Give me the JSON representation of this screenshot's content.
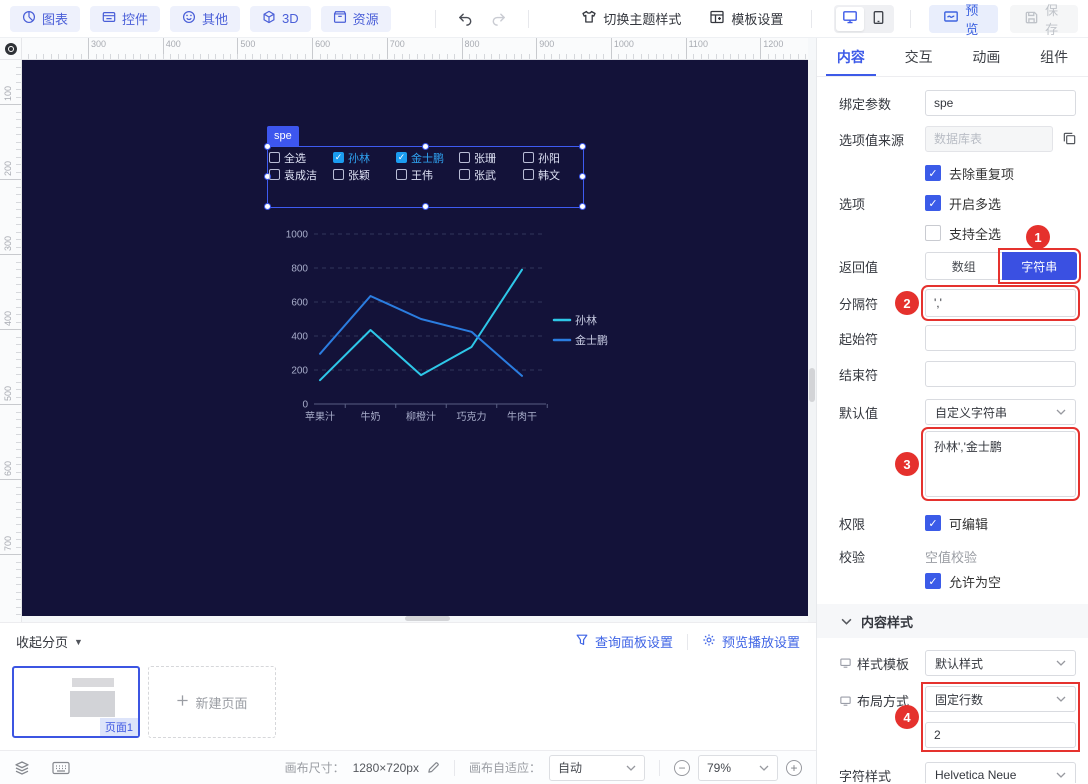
{
  "toolbar": {
    "menu_items": [
      {
        "label": "图表",
        "icon": "chart-pie-icon"
      },
      {
        "label": "控件",
        "icon": "widget-icon"
      },
      {
        "label": "其他",
        "icon": "smiley-icon"
      },
      {
        "label": "3D",
        "icon": "cube-icon"
      },
      {
        "label": "资源",
        "icon": "box-icon"
      }
    ],
    "theme_switch_label": "切换主题样式",
    "template_settings_label": "模板设置",
    "preview_label": "预览",
    "save_label": "保存"
  },
  "rulers": {
    "horizontal_ticks": [
      "300",
      "400",
      "500",
      "600",
      "700",
      "800",
      "900",
      "1000",
      "1100",
      "1200"
    ],
    "vertical_ticks": [
      "100",
      "200",
      "300",
      "400",
      "500",
      "600",
      "700"
    ]
  },
  "canvas": {
    "component_tag": "spe",
    "checkbox_options": [
      {
        "label": "全选",
        "checked": false
      },
      {
        "label": "孙林",
        "checked": true
      },
      {
        "label": "金士鹏",
        "checked": true
      },
      {
        "label": "张珊",
        "checked": false
      },
      {
        "label": "孙阳",
        "checked": false
      },
      {
        "label": "袁成洁",
        "checked": false
      },
      {
        "label": "张颖",
        "checked": false
      },
      {
        "label": "王伟",
        "checked": false
      },
      {
        "label": "张武",
        "checked": false
      },
      {
        "label": "韩文",
        "checked": false
      }
    ]
  },
  "chart_data": {
    "type": "line",
    "categories": [
      "苹果汁",
      "牛奶",
      "柳橙汁",
      "巧克力",
      "牛肉干"
    ],
    "series": [
      {
        "name": "孙林",
        "color": "#2ec7e8",
        "values": [
          140,
          435,
          170,
          335,
          790
        ]
      },
      {
        "name": "金士鹏",
        "color": "#2b7de0",
        "values": [
          295,
          635,
          500,
          425,
          165
        ]
      }
    ],
    "ylim": [
      0,
      1000
    ],
    "yticks": [
      0,
      200,
      400,
      600,
      800,
      1000
    ],
    "grid": "dashed-horizontal",
    "legend_position": "right",
    "title": "",
    "xlabel": "",
    "ylabel": ""
  },
  "pagination": {
    "collapse_label": "收起分页",
    "query_panel_label": "查询面板设置",
    "preview_play_label": "预览播放设置",
    "page1_label": "页面1",
    "new_page_label": "新建页面"
  },
  "statusbar": {
    "canvas_size_label": "画布尺寸：",
    "canvas_size_value": "1280×720px",
    "fit_label": "画布自适应：",
    "fit_value": "自动",
    "zoom_value": "79%"
  },
  "panel": {
    "tabs": [
      {
        "label": "内容",
        "active": true
      },
      {
        "label": "交互",
        "active": false
      },
      {
        "label": "动画",
        "active": false
      },
      {
        "label": "组件",
        "active": false
      }
    ],
    "binding_param_label": "绑定参数",
    "binding_param_value": "spe",
    "source_label": "选项值来源",
    "source_placeholder": "数据库表",
    "dedupe_label": "去除重复项",
    "options_label": "选项",
    "multi_select_label": "开启多选",
    "select_all_label": "支持全选",
    "return_label": "返回值",
    "return_option_array": "数组",
    "return_option_string": "字符串",
    "return_selected": "字符串",
    "separator_label": "分隔符",
    "separator_value": "','",
    "start_label": "起始符",
    "start_value": "",
    "end_label": "结束符",
    "end_value": "",
    "default_label": "默认值",
    "default_type_value": "自定义字符串",
    "default_text_value": "孙林','金士鹏",
    "perm_label": "权限",
    "editable_label": "可编辑",
    "validate_label": "校验",
    "empty_check_label": "空值校验",
    "allow_empty_label": "允许为空",
    "content_style_label": "内容样式",
    "style_template_label": "样式模板",
    "style_template_value": "默认样式",
    "layout_label": "布局方式",
    "layout_mode_value": "固定行数",
    "layout_rows_value": "2",
    "char_style_label": "字符样式",
    "char_style_value": "Helvetica Neue",
    "annotations": [
      "1",
      "2",
      "3",
      "4"
    ],
    "accent_color": "#3d5ae8",
    "annotation_color": "#e5312d"
  }
}
